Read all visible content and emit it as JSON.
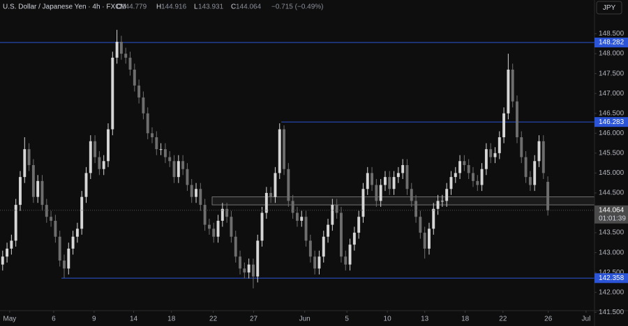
{
  "chart_data": {
    "type": "candlestick",
    "title": "U.S. Dollar / Japanese Yen · 4h · FXCM",
    "ohlc_labels": [
      "O",
      "H",
      "L",
      "C"
    ],
    "change": "−0.715 (−0.49%)",
    "currency": "JPY",
    "countdown": "01:01:39",
    "up_color": "#d6d6d6",
    "down_color": "#6e6e6e",
    "level_color": "#2b55d6",
    "zone_color": "#8a8a8a",
    "grid": false,
    "levels": [
      148.282,
      146.283,
      142.358
    ],
    "zone": [
      144.2,
      144.4
    ],
    "ylim": [
      141.47,
      149.35
    ],
    "yticks": [
      {
        "value": 141.5,
        "label": "141.500"
      },
      {
        "value": 142,
        "label": "142.000"
      },
      {
        "value": 142.5,
        "label": "142.500"
      },
      {
        "value": 143,
        "label": "143.000"
      },
      {
        "value": 143.5,
        "label": "143.500"
      },
      {
        "value": 144,
        "label": "144.000"
      },
      {
        "value": 144.5,
        "label": "144.500"
      },
      {
        "value": 145,
        "label": "145.000"
      },
      {
        "value": 145.5,
        "label": "145.500"
      },
      {
        "value": 146,
        "label": "146.000"
      },
      {
        "value": 146.5,
        "label": "146.500"
      },
      {
        "value": 147,
        "label": "147.000"
      },
      {
        "value": 147.5,
        "label": "147.500"
      },
      {
        "value": 148,
        "label": "148.000"
      },
      {
        "value": 148.5,
        "label": "148.500"
      }
    ],
    "xlim": [
      -0.6,
      134.3
    ],
    "xticks": [
      {
        "value": 1.6,
        "label": "May"
      },
      {
        "value": 11.6,
        "label": "6"
      },
      {
        "value": 20.8,
        "label": "9"
      },
      {
        "value": 29.8,
        "label": "14"
      },
      {
        "value": 38.4,
        "label": "18"
      },
      {
        "value": 47.9,
        "label": "22"
      },
      {
        "value": 57.1,
        "label": "27"
      },
      {
        "value": 68.7,
        "label": "Jun"
      },
      {
        "value": 78.3,
        "label": "5"
      },
      {
        "value": 87.5,
        "label": "10"
      },
      {
        "value": 96,
        "label": "13"
      },
      {
        "value": 105.2,
        "label": "18"
      },
      {
        "value": 113.8,
        "label": "22"
      },
      {
        "value": 124.1,
        "label": "26"
      },
      {
        "value": 132.7,
        "label": "Jul"
      }
    ],
    "open": [
      142.7,
      142.9,
      143.1,
      143.3,
      144.2,
      144.9,
      145.6,
      145.2,
      144.4,
      144.8,
      144.2,
      143.9,
      143.8,
      143.4,
      142.8,
      142.6,
      143.1,
      143.4,
      143.6,
      144.4,
      145.0,
      145.8,
      145.4,
      145.1,
      145.3,
      146.1,
      147.9,
      148.3,
      148.0,
      147.9,
      147.6,
      147.2,
      146.9,
      146.5,
      146.0,
      145.9,
      145.6,
      145.6,
      145.4,
      145.3,
      144.9,
      145.3,
      145.1,
      144.7,
      144.4,
      144.6,
      144.2,
      143.7,
      143.6,
      143.4,
      143.8,
      144.1,
      143.9,
      143.4,
      142.9,
      142.6,
      142.5,
      142.7,
      142.4,
      143.3,
      144.0,
      144.5,
      144.4,
      145.0,
      146.1,
      145.1,
      144.3,
      144.0,
      143.8,
      143.9,
      143.3,
      142.9,
      142.6,
      142.9,
      143.4,
      143.7,
      144.2,
      144.0,
      142.9,
      142.7,
      143.2,
      143.5,
      143.9,
      144.6,
      145.0,
      144.7,
      144.3,
      144.7,
      144.9,
      144.6,
      144.9,
      145.0,
      145.2,
      144.6,
      144.3,
      143.9,
      143.5,
      143.1,
      143.6,
      144.1,
      144.3,
      144.3,
      144.6,
      144.9,
      145.0,
      145.3,
      145.2,
      145.0,
      144.8,
      144.7,
      145.1,
      145.6,
      145.4,
      145.5,
      145.9,
      146.5,
      147.6,
      146.8,
      145.9,
      145.4,
      144.9,
      144.7,
      145.3,
      145.8,
      144.779
    ],
    "high": [
      143.05,
      143.25,
      143.45,
      144.35,
      145.05,
      145.9,
      145.75,
      145.35,
      144.95,
      144.95,
      144.35,
      144.05,
      143.95,
      143.55,
      142.95,
      143.25,
      143.55,
      143.75,
      144.55,
      145.15,
      145.95,
      145.95,
      145.55,
      145.45,
      146.25,
      148.05,
      148.6,
      148.45,
      148.15,
      148.05,
      147.75,
      147.35,
      147.05,
      146.65,
      146.15,
      146.05,
      145.75,
      145.75,
      145.55,
      145.45,
      145.45,
      145.45,
      145.25,
      144.85,
      144.75,
      144.75,
      144.35,
      143.85,
      143.75,
      143.95,
      144.25,
      144.25,
      144.05,
      143.55,
      143.05,
      142.75,
      142.85,
      142.85,
      143.45,
      144.15,
      144.65,
      144.65,
      145.15,
      146.25,
      146.2,
      145.25,
      144.45,
      144.15,
      144.05,
      144.05,
      143.45,
      143.05,
      143.05,
      143.55,
      143.85,
      144.35,
      144.35,
      144.15,
      143.05,
      143.35,
      143.65,
      144.05,
      144.75,
      145.15,
      145.15,
      144.85,
      144.85,
      145.05,
      145.05,
      145.05,
      145.15,
      145.35,
      145.35,
      144.75,
      144.45,
      144.05,
      143.65,
      143.75,
      144.25,
      144.45,
      144.45,
      144.75,
      145.05,
      145.15,
      145.45,
      145.45,
      145.35,
      145.15,
      144.95,
      145.25,
      145.75,
      145.75,
      145.65,
      146.05,
      146.65,
      148.0,
      147.75,
      146.95,
      146.05,
      145.55,
      145.05,
      145.45,
      145.95,
      145.95,
      144.916
    ],
    "low": [
      142.55,
      142.75,
      142.95,
      143.15,
      144.05,
      144.75,
      145.05,
      144.25,
      144.25,
      144.05,
      143.75,
      143.65,
      143.25,
      142.65,
      142.36,
      142.45,
      142.95,
      143.25,
      143.45,
      144.25,
      144.85,
      145.25,
      144.95,
      144.95,
      145.15,
      145.95,
      147.75,
      147.85,
      147.75,
      147.45,
      147.05,
      146.75,
      146.35,
      145.85,
      145.75,
      145.45,
      145.45,
      145.25,
      145.15,
      144.75,
      144.75,
      144.95,
      144.55,
      144.25,
      144.25,
      144.05,
      143.55,
      143.45,
      143.25,
      143.25,
      143.65,
      143.75,
      143.25,
      142.75,
      142.45,
      142.35,
      142.35,
      142.1,
      142.25,
      143.15,
      143.85,
      144.25,
      144.25,
      144.85,
      144.95,
      144.15,
      143.85,
      143.65,
      143.65,
      143.15,
      142.75,
      142.45,
      142.45,
      142.75,
      143.25,
      143.55,
      143.85,
      142.75,
      142.55,
      142.55,
      143.05,
      143.35,
      143.75,
      144.45,
      144.55,
      144.15,
      144.15,
      144.55,
      144.45,
      144.45,
      144.75,
      144.85,
      144.45,
      144.15,
      143.75,
      143.35,
      142.85,
      142.95,
      143.45,
      143.95,
      144.15,
      144.15,
      144.45,
      144.75,
      144.85,
      145.05,
      144.85,
      144.65,
      144.55,
      144.55,
      144.95,
      145.25,
      145.25,
      145.35,
      145.75,
      146.35,
      146.65,
      145.75,
      145.25,
      144.75,
      144.55,
      144.55,
      145.15,
      144.85,
      143.931
    ],
    "close": [
      142.9,
      143.1,
      143.3,
      144.2,
      144.9,
      145.6,
      145.2,
      144.4,
      144.8,
      144.2,
      143.9,
      143.8,
      143.4,
      142.8,
      142.6,
      143.1,
      143.4,
      143.6,
      144.4,
      145.0,
      145.8,
      145.4,
      145.1,
      145.3,
      146.1,
      147.9,
      148.3,
      148.0,
      147.9,
      147.6,
      147.2,
      146.9,
      146.5,
      146.0,
      145.9,
      145.6,
      145.6,
      145.4,
      145.3,
      144.9,
      145.3,
      145.1,
      144.7,
      144.4,
      144.6,
      144.2,
      143.7,
      143.6,
      143.4,
      143.8,
      144.1,
      143.9,
      143.4,
      142.9,
      142.6,
      142.5,
      142.7,
      142.4,
      143.3,
      144.0,
      144.5,
      144.4,
      145.0,
      146.1,
      145.1,
      144.3,
      144.0,
      143.8,
      143.9,
      143.3,
      142.9,
      142.6,
      142.9,
      143.4,
      143.7,
      144.2,
      144.0,
      142.9,
      142.7,
      143.2,
      143.5,
      143.9,
      144.6,
      145.0,
      144.7,
      144.3,
      144.7,
      144.9,
      144.6,
      144.9,
      145.0,
      145.2,
      144.6,
      144.3,
      143.9,
      143.5,
      143.1,
      143.6,
      144.1,
      144.3,
      144.3,
      144.6,
      144.9,
      145.0,
      145.3,
      145.2,
      145.0,
      144.8,
      144.7,
      145.1,
      145.6,
      145.4,
      145.5,
      145.9,
      146.5,
      147.6,
      146.8,
      145.9,
      145.4,
      144.9,
      144.7,
      145.3,
      145.8,
      145.0,
      144.064
    ]
  }
}
